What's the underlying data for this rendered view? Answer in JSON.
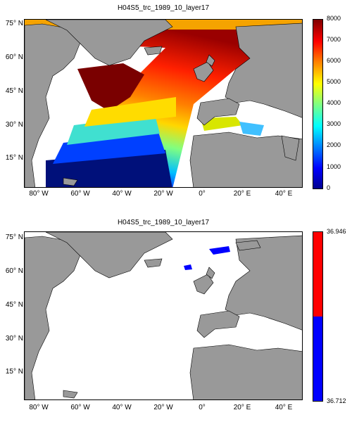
{
  "panels": [
    {
      "title": "H04S5_trc_1989_10_layer17",
      "colorbar_ticks": [
        "8000",
        "7000",
        "6000",
        "5000",
        "4000",
        "3000",
        "2000",
        "1000",
        "0"
      ],
      "colorbar_type": "jet",
      "colorbar_range": [
        0,
        8000
      ]
    },
    {
      "title": "H04S5_trc_1989_10_layer17",
      "colorbar_ticks": [
        "36.946",
        "36.712"
      ],
      "colorbar_type": "two-tone",
      "colorbar_colors": [
        "#ff0000",
        "#0000ff"
      ],
      "colorbar_range": [
        36.712,
        36.946
      ]
    }
  ],
  "lat_labels": [
    "75° N",
    "60° N",
    "45° N",
    "30° N",
    "15° N"
  ],
  "lon_labels": [
    "80° W",
    "60° W",
    "40° W",
    "20° W",
    "0°",
    "20° E",
    "40° E"
  ],
  "colors": {
    "land": "#999999",
    "ocean_nodata": "#ffffff",
    "low_value": "#0000ff",
    "high_value": "#ff0000"
  }
}
